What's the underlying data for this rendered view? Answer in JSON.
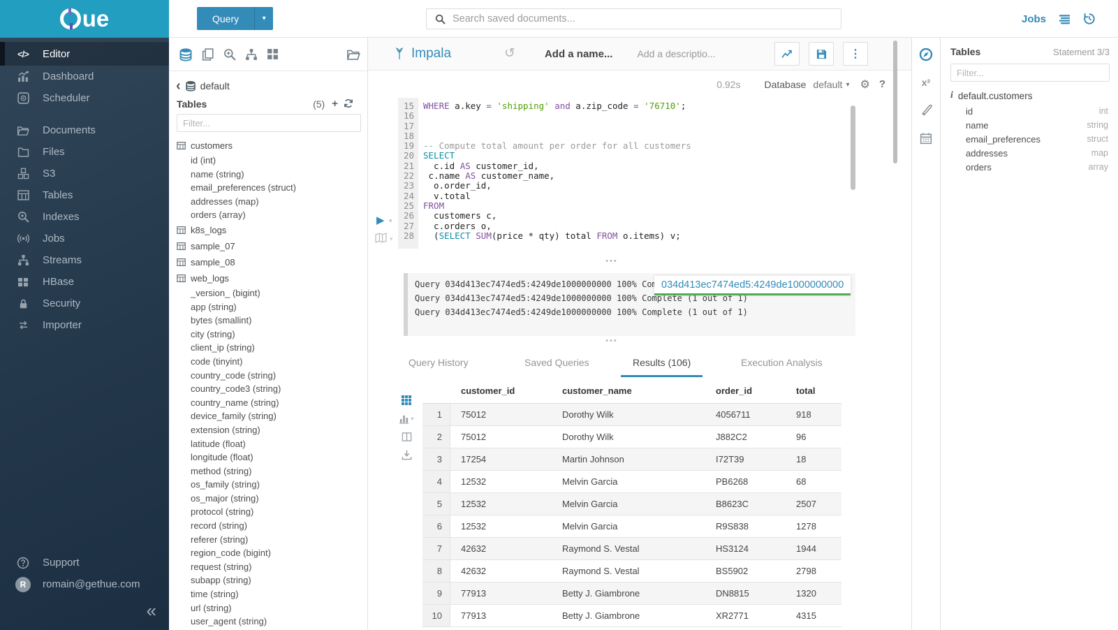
{
  "brand": {
    "logo_text": "ue"
  },
  "topbar": {
    "query_button": "Query",
    "search_placeholder": "Search saved documents...",
    "jobs_label": "Jobs"
  },
  "sidebar": {
    "items": [
      {
        "icon": "editor-icon",
        "label": "Editor",
        "active": true
      },
      {
        "icon": "dashboard-icon",
        "label": "Dashboard"
      },
      {
        "icon": "scheduler-icon",
        "label": "Scheduler"
      },
      {
        "icon": "documents-icon",
        "label": "Documents",
        "gap": true
      },
      {
        "icon": "files-icon",
        "label": "Files"
      },
      {
        "icon": "s3-icon",
        "label": "S3"
      },
      {
        "icon": "tables-icon",
        "label": "Tables"
      },
      {
        "icon": "indexes-icon",
        "label": "Indexes"
      },
      {
        "icon": "jobs-icon",
        "label": "Jobs"
      },
      {
        "icon": "streams-icon",
        "label": "Streams"
      },
      {
        "icon": "hbase-icon",
        "label": "HBase"
      },
      {
        "icon": "security-icon",
        "label": "Security"
      },
      {
        "icon": "importer-icon",
        "label": "Importer"
      }
    ],
    "support_label": "Support",
    "user_email": "romain@gethue.com",
    "avatar_initial": "R"
  },
  "left_assist": {
    "breadcrumb": "default",
    "tables_header": "Tables",
    "count": "(5)",
    "filter_placeholder": "Filter...",
    "items": [
      {
        "t": "table",
        "label": "customers"
      },
      {
        "t": "col",
        "label": "id (int)"
      },
      {
        "t": "col",
        "label": "name (string)"
      },
      {
        "t": "col",
        "label": "email_preferences (struct)"
      },
      {
        "t": "col",
        "label": "addresses (map)"
      },
      {
        "t": "col",
        "label": "orders (array)"
      },
      {
        "t": "table",
        "label": "k8s_logs"
      },
      {
        "t": "table",
        "label": "sample_07"
      },
      {
        "t": "table",
        "label": "sample_08"
      },
      {
        "t": "table",
        "label": "web_logs"
      },
      {
        "t": "col",
        "label": "_version_ (bigint)"
      },
      {
        "t": "col",
        "label": "app (string)"
      },
      {
        "t": "col",
        "label": "bytes (smallint)"
      },
      {
        "t": "col",
        "label": "city (string)"
      },
      {
        "t": "col",
        "label": "client_ip (string)"
      },
      {
        "t": "col",
        "label": "code (tinyint)"
      },
      {
        "t": "col",
        "label": "country_code (string)"
      },
      {
        "t": "col",
        "label": "country_code3 (string)"
      },
      {
        "t": "col",
        "label": "country_name (string)"
      },
      {
        "t": "col",
        "label": "device_family (string)"
      },
      {
        "t": "col",
        "label": "extension (string)"
      },
      {
        "t": "col",
        "label": "latitude (float)"
      },
      {
        "t": "col",
        "label": "longitude (float)"
      },
      {
        "t": "col",
        "label": "method (string)"
      },
      {
        "t": "col",
        "label": "os_family (string)"
      },
      {
        "t": "col",
        "label": "os_major (string)"
      },
      {
        "t": "col",
        "label": "protocol (string)"
      },
      {
        "t": "col",
        "label": "record (string)"
      },
      {
        "t": "col",
        "label": "referer (string)"
      },
      {
        "t": "col",
        "label": "region_code (bigint)"
      },
      {
        "t": "col",
        "label": "request (string)"
      },
      {
        "t": "col",
        "label": "subapp (string)"
      },
      {
        "t": "col",
        "label": "time (string)"
      },
      {
        "t": "col",
        "label": "url (string)"
      },
      {
        "t": "col",
        "label": "user_agent (string)"
      }
    ]
  },
  "editor": {
    "engine": "Impala",
    "name_placeholder": "Add a name...",
    "description_placeholder": "Add a descriptio...",
    "exec_time": "0.92s",
    "database_label": "Database",
    "database_value": "default",
    "code": [
      {
        "n": "15",
        "seg": [
          [
            "kw",
            "WHERE"
          ],
          [
            "pl",
            " a.key "
          ],
          [
            "kw",
            "="
          ],
          [
            "pl",
            " "
          ],
          [
            "str",
            "'shipping'"
          ],
          [
            "pl",
            " "
          ],
          [
            "kw",
            "and"
          ],
          [
            "pl",
            " a.zip_code "
          ],
          [
            "kw",
            "="
          ],
          [
            "pl",
            " "
          ],
          [
            "str",
            "'76710'"
          ],
          [
            "pl",
            ";"
          ]
        ]
      },
      {
        "n": "16",
        "seg": []
      },
      {
        "n": "17",
        "seg": []
      },
      {
        "n": "18",
        "seg": []
      },
      {
        "n": "19",
        "seg": [
          [
            "cm",
            "-- Compute total amount per order for all customers"
          ]
        ]
      },
      {
        "n": "20",
        "seg": [
          [
            "st",
            "SELECT"
          ]
        ]
      },
      {
        "n": "21",
        "seg": [
          [
            "pl",
            "  c.id "
          ],
          [
            "kw",
            "AS"
          ],
          [
            "pl",
            " customer_id,"
          ]
        ]
      },
      {
        "n": "22",
        "seg": [
          [
            "pl",
            " c.name "
          ],
          [
            "kw",
            "AS"
          ],
          [
            "pl",
            " customer_name,"
          ]
        ]
      },
      {
        "n": "23",
        "seg": [
          [
            "pl",
            "  o.order_id,"
          ]
        ]
      },
      {
        "n": "24",
        "seg": [
          [
            "pl",
            "  v.total"
          ]
        ]
      },
      {
        "n": "25",
        "seg": [
          [
            "kw",
            "FROM"
          ]
        ]
      },
      {
        "n": "26",
        "seg": [
          [
            "pl",
            "  customers c,"
          ]
        ]
      },
      {
        "n": "27",
        "seg": [
          [
            "pl",
            "  c.orders o,"
          ]
        ]
      },
      {
        "n": "28",
        "seg": [
          [
            "pl",
            "  ("
          ],
          [
            "st",
            "SELECT"
          ],
          [
            "pl",
            " "
          ],
          [
            "kw",
            "SUM"
          ],
          [
            "pl",
            "(price * qty) total "
          ],
          [
            "kw",
            "FROM"
          ],
          [
            "pl",
            " o.items) v;"
          ]
        ]
      }
    ]
  },
  "log": {
    "lines": [
      "Query 034d413ec7474ed5:4249de1000000000 100% Complete (1 out of 1)",
      "Query 034d413ec7474ed5:4249de1000000000 100% Complete (1 out of 1)",
      "Query 034d413ec7474ed5:4249de1000000000 100% Complete (1 out of 1)"
    ],
    "overlay": "034d413ec7474ed5:4249de1000000000"
  },
  "result_tabs": {
    "items": [
      "Query History",
      "Saved Queries",
      "Results (106)",
      "Execution Analysis"
    ],
    "active_index": 2
  },
  "results": {
    "columns": [
      "customer_id",
      "customer_name",
      "order_id",
      "total"
    ],
    "rows": [
      [
        "1",
        "75012",
        "Dorothy Wilk",
        "4056711",
        "918"
      ],
      [
        "2",
        "75012",
        "Dorothy Wilk",
        "J882C2",
        "96"
      ],
      [
        "3",
        "17254",
        "Martin Johnson",
        "I72T39",
        "18"
      ],
      [
        "4",
        "12532",
        "Melvin Garcia",
        "PB6268",
        "68"
      ],
      [
        "5",
        "12532",
        "Melvin Garcia",
        "B8623C",
        "2507"
      ],
      [
        "6",
        "12532",
        "Melvin Garcia",
        "R9S838",
        "1278"
      ],
      [
        "7",
        "42632",
        "Raymond S. Vestal",
        "HS3124",
        "1944"
      ],
      [
        "8",
        "42632",
        "Raymond S. Vestal",
        "BS5902",
        "2798"
      ],
      [
        "9",
        "77913",
        "Betty J. Giambrone",
        "DN8815",
        "1320"
      ],
      [
        "10",
        "77913",
        "Betty J. Giambrone",
        "XR2771",
        "4315"
      ]
    ]
  },
  "right_assist": {
    "title": "Tables",
    "statement": "Statement 3/3",
    "filter_placeholder": "Filter...",
    "table_label": "default.customers",
    "columns": [
      {
        "name": "id",
        "type": "int"
      },
      {
        "name": "name",
        "type": "string"
      },
      {
        "name": "email_preferences",
        "type": "struct"
      },
      {
        "name": "addresses",
        "type": "map"
      },
      {
        "name": "orders",
        "type": "array"
      }
    ]
  },
  "colors": {
    "accent_blue": "#338bb8",
    "banner_teal": "#219ec0",
    "keyword_purple": "#8250a0",
    "statement_teal": "#0d8ea6",
    "string_green": "#4f9e06",
    "comment_gray": "#9b9b9b",
    "overlay_underline_green": "#4caf50"
  }
}
